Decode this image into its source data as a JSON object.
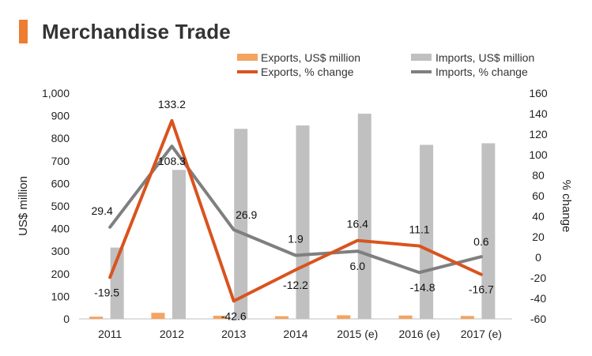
{
  "title": "Merchandise Trade",
  "colors": {
    "accent": "#ed7d31",
    "exports_bar": "#f4a460",
    "imports_bar": "#c0c0c0",
    "exports_line": "#d9531e",
    "imports_line": "#7f7f7f"
  },
  "chart_data": {
    "type": "bar",
    "categories": [
      "2011",
      "2012",
      "2013",
      "2014",
      "2015 (e)",
      "2016 (e)",
      "2017 (e)"
    ],
    "series": [
      {
        "name": "Exports, US$ million",
        "kind": "bar",
        "axis": "left",
        "values": [
          10,
          27,
          14,
          12,
          16,
          15,
          13
        ]
      },
      {
        "name": "Imports, US$ million",
        "kind": "bar",
        "axis": "left",
        "values": [
          316,
          660,
          842,
          857,
          909,
          771,
          778
        ]
      },
      {
        "name": "Exports, % change",
        "kind": "line",
        "axis": "right",
        "values": [
          -19.5,
          133.2,
          -42.6,
          -12.2,
          16.4,
          11.1,
          -16.7
        ]
      },
      {
        "name": "Imports, % change",
        "kind": "line",
        "axis": "right",
        "values": [
          29.4,
          108.3,
          26.9,
          1.9,
          6.0,
          -14.8,
          0.6
        ]
      }
    ],
    "data_labels": {
      "exports_pct": [
        "-19.5",
        "133.2",
        "-42.6",
        "-12.2",
        "16.4",
        "11.1",
        "-16.7"
      ],
      "imports_pct": [
        "29.4",
        "108.3",
        "26.9",
        "1.9",
        "6.0",
        "-14.8",
        "0.6"
      ]
    },
    "ylabel": "US$ million",
    "ylabel_right": "% change",
    "ylim": [
      0,
      1000
    ],
    "ylim_right": [
      -60,
      160
    ],
    "yticks": [
      "0",
      "100",
      "200",
      "300",
      "400",
      "500",
      "600",
      "700",
      "800",
      "900",
      "1,000"
    ],
    "yticks_right": [
      "-60",
      "-40",
      "-20",
      "0",
      "20",
      "40",
      "60",
      "80",
      "100",
      "120",
      "140",
      "160"
    ],
    "grid": false,
    "legend_position": "top"
  }
}
